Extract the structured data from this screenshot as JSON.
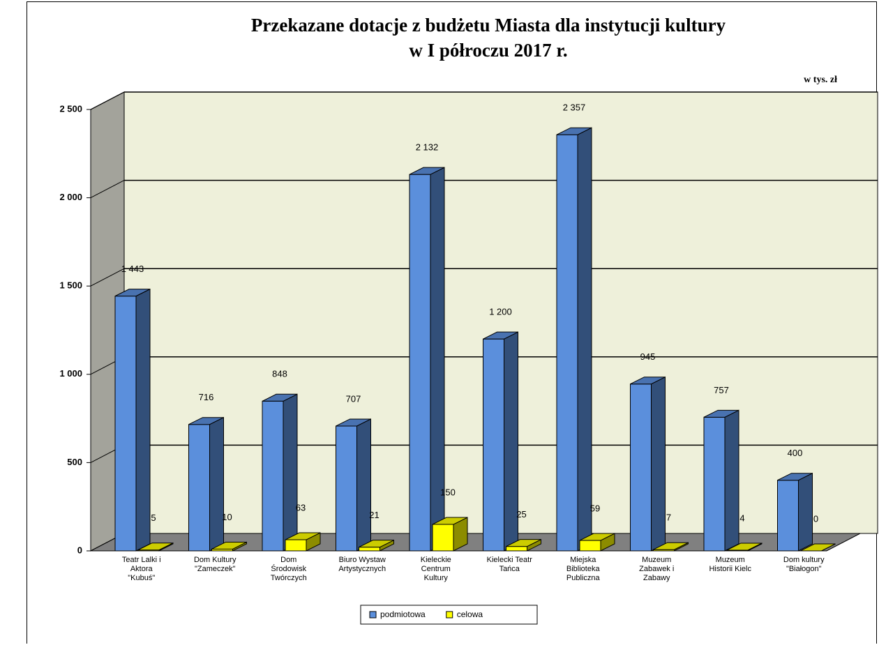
{
  "chart_data": {
    "type": "bar3d",
    "title": "Przekazane dotacje z budżetu Miasta dla instytucji kultury\nw I półroczu 2017 r.",
    "unit_label": "w tys. zł",
    "categories": [
      "Teatr Lalki i\nAktora\n\"Kubuś\"",
      "Dom Kultury\n\"Zameczek\"",
      "Dom\nŚrodowisk\nTwórczych",
      "Biuro Wystaw\nArtystycznych",
      "Kieleckie\nCentrum\nKultury",
      "Kielecki Teatr\nTańca",
      "Miejska\nBiblioteka\nPubliczna",
      "Muzeum\nZabawek i\nZabawy",
      "Muzeum\nHistorii Kielc",
      "Dom kultury\n\"Białogon\""
    ],
    "series": [
      {
        "name": "podmiotowa",
        "color": "#5b8fdc",
        "values": [
          1443,
          716,
          848,
          707,
          2132,
          1200,
          2357,
          945,
          757,
          400
        ],
        "value_labels": [
          "1 443",
          "716",
          "848",
          "707",
          "2 132",
          "1 200",
          "2 357",
          "945",
          "757",
          "400"
        ]
      },
      {
        "name": "celowa",
        "color": "#ffff00",
        "values": [
          5,
          10,
          63,
          21,
          150,
          25,
          59,
          7,
          4,
          0
        ]
      }
    ],
    "ylim": [
      0,
      2500
    ],
    "yticks": [
      0,
      500,
      {
        "value": 1000,
        "label": "1 000"
      },
      {
        "value": 1500,
        "label": "1 500"
      },
      {
        "value": 2000,
        "label": "2 000"
      },
      {
        "value": 2500,
        "label": "2 500"
      }
    ],
    "grid": true,
    "legend": "bottom"
  }
}
